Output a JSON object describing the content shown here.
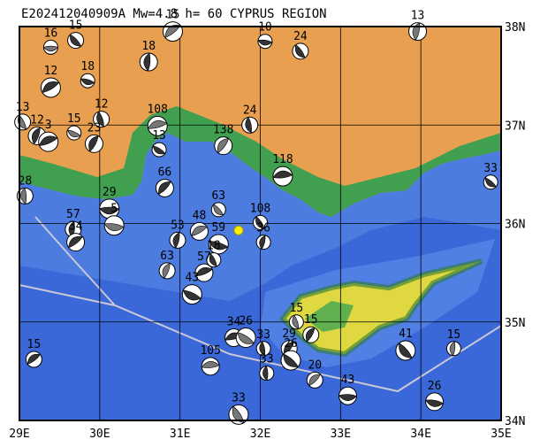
{
  "title": "E202412040909A Mw=4.8 h= 60 CYPRUS REGION",
  "map": {
    "lonlim": [
      29,
      35
    ],
    "latlim": [
      34,
      38
    ],
    "lon_ticks": [
      {
        "value": 29,
        "label": "29E"
      },
      {
        "value": 30,
        "label": "30E"
      },
      {
        "value": 31,
        "label": "31E"
      },
      {
        "value": 32,
        "label": "32E"
      },
      {
        "value": 33,
        "label": "33E"
      },
      {
        "value": 34,
        "label": "34E"
      },
      {
        "value": 35,
        "label": "35E"
      }
    ],
    "lat_ticks": [
      {
        "value": 34,
        "label": "34N"
      },
      {
        "value": 35,
        "label": "35N"
      },
      {
        "value": 36,
        "label": "36N"
      },
      {
        "value": 37,
        "label": "37N"
      },
      {
        "value": 38,
        "label": "38N"
      }
    ],
    "epicenter": {
      "lon": 31.73,
      "lat": 35.93
    },
    "events": [
      {
        "label": "16",
        "lon": 29.39,
        "lat": 37.79
      },
      {
        "label": "15",
        "lon": 29.7,
        "lat": 37.86
      },
      {
        "label": "18",
        "lon": 30.61,
        "lat": 37.64
      },
      {
        "label": "15",
        "lon": 30.91,
        "lat": 37.95
      },
      {
        "label": "10",
        "lon": 32.06,
        "lat": 37.85
      },
      {
        "label": "24",
        "lon": 32.5,
        "lat": 37.75
      },
      {
        "label": "13",
        "lon": 33.96,
        "lat": 37.95
      },
      {
        "label": "12",
        "lon": 29.39,
        "lat": 37.38
      },
      {
        "label": "18",
        "lon": 29.85,
        "lat": 37.45
      },
      {
        "label": "13",
        "lon": 29.04,
        "lat": 37.03
      },
      {
        "label": "12",
        "lon": 29.22,
        "lat": 36.89
      },
      {
        "label": "3",
        "lon": 29.36,
        "lat": 36.83
      },
      {
        "label": "15",
        "lon": 29.68,
        "lat": 36.92
      },
      {
        "label": "12",
        "lon": 30.02,
        "lat": 37.06
      },
      {
        "label": "23",
        "lon": 29.93,
        "lat": 36.81
      },
      {
        "label": "108",
        "lon": 30.72,
        "lat": 36.99
      },
      {
        "label": "13",
        "lon": 30.74,
        "lat": 36.75
      },
      {
        "label": "24",
        "lon": 31.87,
        "lat": 37.0
      },
      {
        "label": "138",
        "lon": 31.54,
        "lat": 36.79
      },
      {
        "label": "118",
        "lon": 32.28,
        "lat": 36.48
      },
      {
        "label": "33",
        "lon": 34.87,
        "lat": 36.42
      },
      {
        "label": "28",
        "lon": 29.07,
        "lat": 36.28
      },
      {
        "label": "66",
        "lon": 30.81,
        "lat": 36.36
      },
      {
        "label": "29",
        "lon": 30.12,
        "lat": 36.15
      },
      {
        "label": "63",
        "lon": 31.48,
        "lat": 36.14
      },
      {
        "label": "57",
        "lon": 29.67,
        "lat": 35.94
      },
      {
        "label": "34",
        "lon": 29.7,
        "lat": 35.81
      },
      {
        "label": "5",
        "lon": 30.18,
        "lat": 35.98
      },
      {
        "label": "108",
        "lon": 32.0,
        "lat": 36.01
      },
      {
        "label": "53",
        "lon": 30.97,
        "lat": 35.83
      },
      {
        "label": "48",
        "lon": 31.24,
        "lat": 35.92
      },
      {
        "label": "59",
        "lon": 31.48,
        "lat": 35.79
      },
      {
        "label": "18",
        "lon": 31.42,
        "lat": 35.63
      },
      {
        "label": "63",
        "lon": 30.84,
        "lat": 35.52
      },
      {
        "label": "57",
        "lon": 31.3,
        "lat": 35.5
      },
      {
        "label": "43",
        "lon": 31.15,
        "lat": 35.28
      },
      {
        "label": "15",
        "lon": 32.45,
        "lat": 35.0
      },
      {
        "label": "15",
        "lon": 32.63,
        "lat": 34.87
      },
      {
        "label": "34",
        "lon": 31.67,
        "lat": 34.84
      },
      {
        "label": "26",
        "lon": 31.82,
        "lat": 34.84
      },
      {
        "label": "33",
        "lon": 32.04,
        "lat": 34.73
      },
      {
        "label": "29",
        "lon": 32.36,
        "lat": 34.73
      },
      {
        "label": "105",
        "lon": 31.38,
        "lat": 34.55
      },
      {
        "label": "26",
        "lon": 32.38,
        "lat": 34.61
      },
      {
        "label": "33",
        "lon": 32.08,
        "lat": 34.48
      },
      {
        "label": "20",
        "lon": 32.68,
        "lat": 34.41
      },
      {
        "label": "43",
        "lon": 33.09,
        "lat": 34.25
      },
      {
        "label": "41",
        "lon": 33.81,
        "lat": 34.71
      },
      {
        "label": "15",
        "lon": 34.41,
        "lat": 34.73
      },
      {
        "label": "15",
        "lon": 29.18,
        "lat": 34.62
      },
      {
        "label": "26",
        "lon": 34.17,
        "lat": 34.19
      },
      {
        "label": "33",
        "lon": 31.73,
        "lat": 34.06
      },
      {
        "label": "36",
        "lon": 32.04,
        "lat": 35.81
      }
    ]
  }
}
